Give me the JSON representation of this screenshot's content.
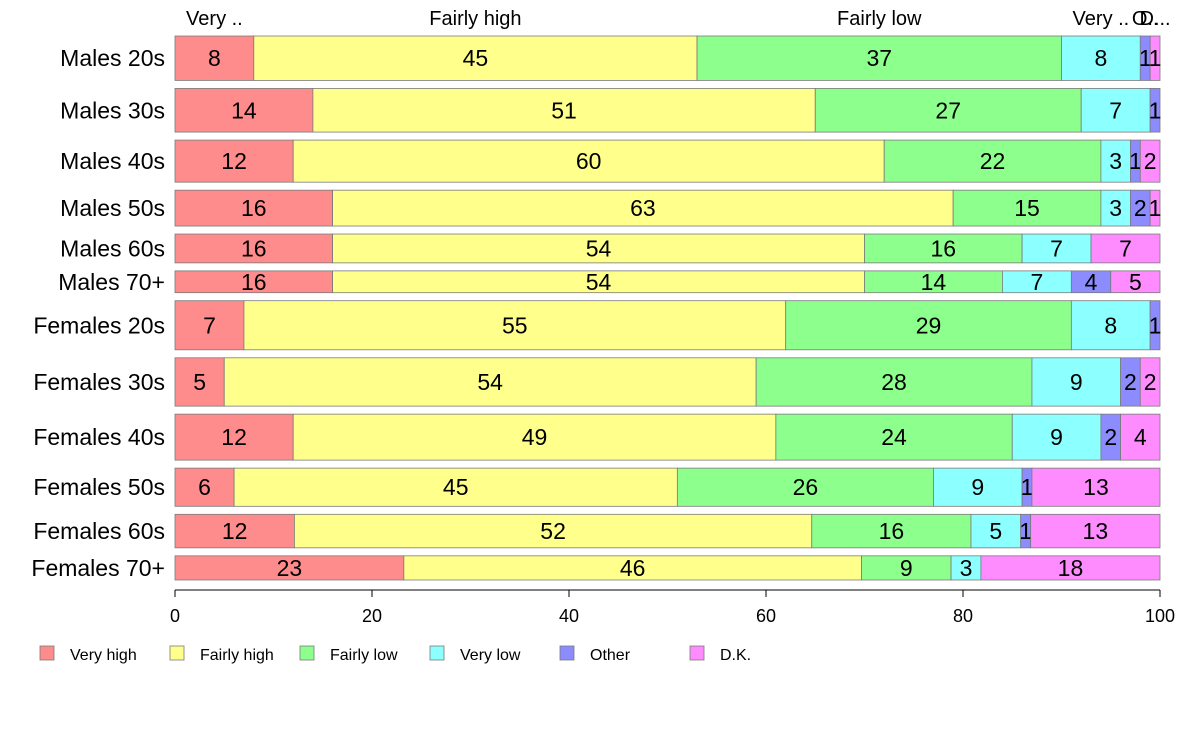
{
  "chart_data": {
    "type": "bar",
    "orientation": "horizontal",
    "stacked": true,
    "categories": [
      "Males 20s",
      "Males 30s",
      "Males 40s",
      "Males 50s",
      "Males 60s",
      "Males 70+",
      "Females 20s",
      "Females 30s",
      "Females 40s",
      "Females 50s",
      "Females 60s",
      "Females 70+"
    ],
    "group_weights": [
      0.57,
      0.56,
      0.54,
      0.46,
      0.37,
      0.28,
      0.63,
      0.62,
      0.59,
      0.49,
      0.43,
      0.31
    ],
    "series": [
      {
        "name": "Very high",
        "color": "#FF8C8C",
        "values": [
          8,
          14,
          12,
          16,
          16,
          16,
          7,
          5,
          12,
          6,
          12,
          23
        ]
      },
      {
        "name": "Fairly high",
        "color": "#FFFF8C",
        "values": [
          45,
          51,
          60,
          63,
          54,
          54,
          55,
          54,
          49,
          45,
          52,
          46
        ]
      },
      {
        "name": "Fairly low",
        "color": "#8CFF8C",
        "values": [
          37,
          27,
          22,
          15,
          16,
          14,
          29,
          28,
          24,
          26,
          16,
          9
        ]
      },
      {
        "name": "Very low",
        "color": "#8CFFFF",
        "values": [
          8,
          7,
          3,
          3,
          7,
          7,
          8,
          9,
          9,
          9,
          5,
          3
        ]
      },
      {
        "name": "Other",
        "color": "#8C8CFF",
        "values": [
          1,
          1,
          1,
          2,
          0,
          4,
          1,
          2,
          2,
          1,
          1,
          0
        ]
      },
      {
        "name": "D.K.",
        "color": "#FF8CFF",
        "values": [
          1,
          0,
          2,
          1,
          7,
          5,
          0,
          2,
          4,
          13,
          13,
          18
        ]
      }
    ],
    "segment_labels": [
      [
        "8",
        "45",
        "37",
        "8",
        "1",
        "1"
      ],
      [
        "14",
        "51",
        "27",
        "7",
        "1",
        ""
      ],
      [
        "12",
        "60",
        "22",
        "3",
        "1",
        "2"
      ],
      [
        "16",
        "63",
        "15",
        "3",
        "2",
        "1"
      ],
      [
        "16",
        "54",
        "16",
        "7",
        "",
        "7"
      ],
      [
        "16",
        "54",
        "14",
        "7",
        "4",
        "5"
      ],
      [
        "7",
        "55",
        "29",
        "8",
        "1",
        ""
      ],
      [
        "5",
        "54",
        "28",
        "9",
        "2",
        "2"
      ],
      [
        "12",
        "49",
        "24",
        "9",
        "2",
        "4"
      ],
      [
        "6",
        "45",
        "26",
        "9",
        "1",
        "13"
      ],
      [
        "12",
        "52",
        "16",
        "5",
        "1",
        "13"
      ],
      [
        "23",
        "46",
        "9",
        "3",
        "",
        "18"
      ]
    ],
    "top_labels": [
      "Very ..",
      "Fairly high",
      "Fairly low",
      "Very ..",
      "O..",
      "D..."
    ],
    "xlim": [
      0,
      100
    ],
    "xticks": [
      0,
      20,
      40,
      60,
      80,
      100
    ],
    "title": "",
    "xlabel": "",
    "ylabel": "",
    "grid": false,
    "legend_position": "bottom",
    "legend": [
      "Very high",
      "Fairly high",
      "Fairly low",
      "Very low",
      "Other",
      "D.K."
    ]
  }
}
